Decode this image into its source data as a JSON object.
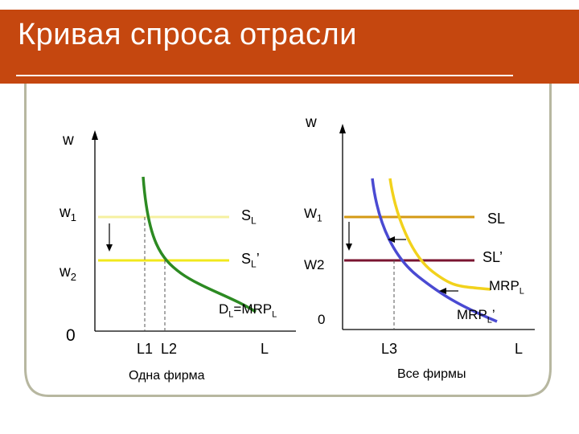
{
  "slide": {
    "title": "Кривая спроса отрасли"
  },
  "left_panel": {
    "y_axis_label": "w",
    "w1_label": "w",
    "w1_sub": "1",
    "w2_label": "w",
    "w2_sub": "2",
    "origin_label": "0",
    "sl_label": "S",
    "sl_sub": "L",
    "sl_prime_label": "S",
    "sl_prime_sub": "L",
    "sl_prime_mark": "’",
    "demand_label_pre": "D",
    "demand_label_sub1": "L",
    "demand_label_mid": "=MRP",
    "demand_label_sub2": "L",
    "l1_label": "L1",
    "l2_label": "L2",
    "x_axis_label": "L",
    "caption": "Одна фирма"
  },
  "right_panel": {
    "y_axis_label": "w",
    "w1_label": "W",
    "w1_sub": "1",
    "w2_label": "W2",
    "origin_label": "0",
    "sl_label": "SL",
    "sl_prime_label": "SL’",
    "mrp_label": "MRP",
    "mrp_sub": "L",
    "mrp_prime_label": "MRP",
    "mrp_prime_sub": "L",
    "mrp_prime_mark": "’",
    "l3_label": "L3",
    "x_axis_label": "L",
    "caption": "Все фирмы"
  },
  "colors": {
    "title_bg": "#c5470f",
    "sl_left": "#f5f0a0",
    "sl_prime_left": "#f2e81c",
    "demand_curve_left": "#2c8a22",
    "sl_right": "#d49a14",
    "sl_prime_right": "#7a1430",
    "mrp_curve": "#f2d21c",
    "mrp_prime_curve": "#4a4ad2",
    "frame": "#b7b7a0"
  }
}
